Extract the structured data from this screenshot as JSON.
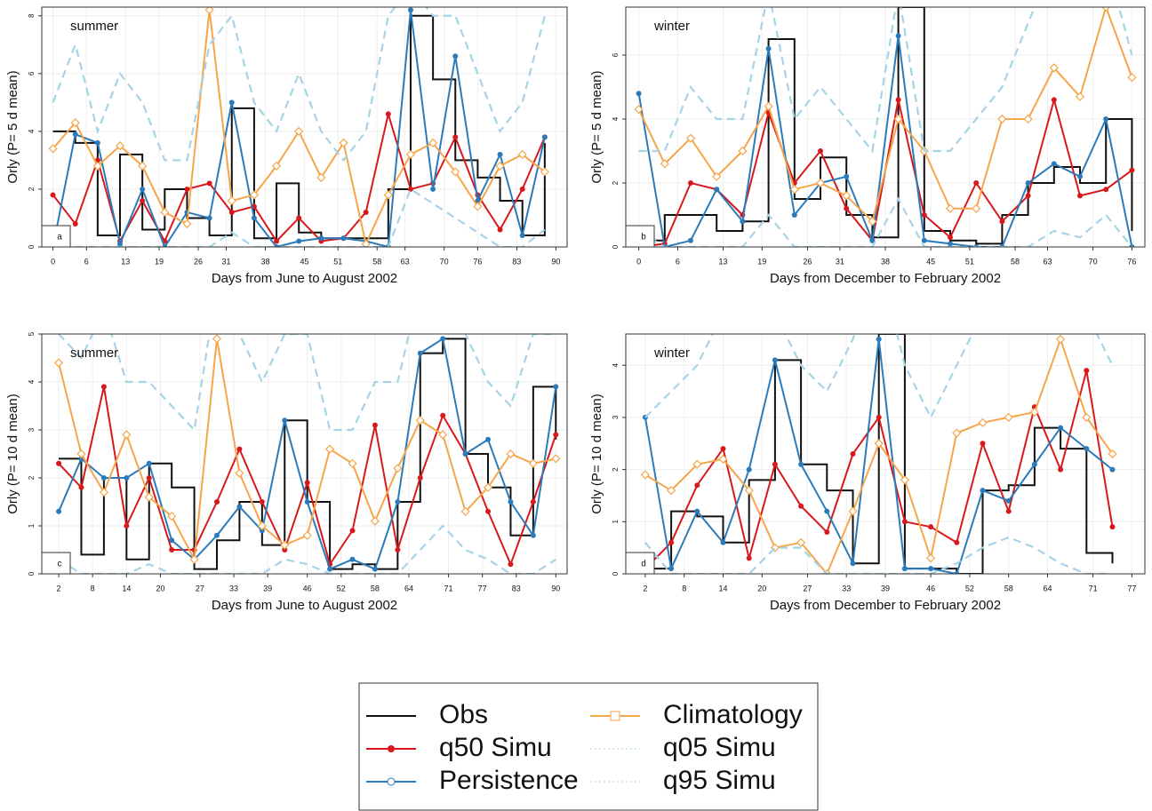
{
  "legend": [
    {
      "name": "Obs",
      "color": "#111111",
      "step": true,
      "marker": null,
      "dash": false
    },
    {
      "name": "q50 Simu",
      "color": "#d7191c",
      "step": false,
      "marker": "dot",
      "dash": false
    },
    {
      "name": "Persistence",
      "color": "#2b7bba",
      "step": false,
      "marker": "circle",
      "dash": false
    },
    {
      "name": "Climatology",
      "color": "#f5a64a",
      "step": false,
      "marker": "square",
      "dash": false
    },
    {
      "name": "q05 Simu",
      "color": "#a6d4e6",
      "step": false,
      "marker": null,
      "dash": true
    },
    {
      "name": "q95 Simu",
      "color": "#a6d4e6",
      "step": false,
      "marker": null,
      "dash": true
    }
  ],
  "chart_data": [
    {
      "type": "line",
      "annotation": "summer",
      "panel": "a",
      "xlabel": "Days from June to August 2002",
      "ylabel": "Orly (P= 5 d mean)",
      "xlim": [
        -2,
        92
      ],
      "ylim": [
        0,
        8.3
      ],
      "xticks": [
        0,
        6,
        13,
        19,
        26,
        31,
        38,
        45,
        51,
        58,
        63,
        70,
        76,
        83,
        90
      ],
      "yticks": [
        0,
        2,
        4,
        6,
        8
      ],
      "x": [
        0,
        4,
        8,
        12,
        16,
        20,
        24,
        28,
        32,
        36,
        40,
        44,
        48,
        52,
        56,
        60,
        64,
        68,
        72,
        76,
        80,
        84,
        88
      ],
      "series": [
        {
          "values": [
            4,
            3.6,
            0.4,
            3.2,
            0.6,
            2,
            1,
            0.4,
            4.8,
            0.3,
            2.2,
            0.5,
            0.3,
            0.3,
            0.3,
            2,
            8,
            5.8,
            3,
            2.4,
            1.6,
            0.4,
            3.6
          ]
        },
        {
          "values": [
            1.8,
            0.8,
            3,
            0.2,
            1.6,
            0.2,
            2,
            2.2,
            1.2,
            1.4,
            0.2,
            1,
            0.2,
            0.3,
            1.2,
            4.6,
            2,
            2.2,
            3.8,
            1.8,
            0.6,
            2,
            3.8
          ]
        },
        {
          "values": [
            0,
            3.9,
            3.6,
            0.1,
            2,
            0,
            1.2,
            1,
            5,
            1,
            0,
            0.2,
            0.3,
            0.3,
            0.2,
            0,
            8.2,
            2,
            6.6,
            1.6,
            3.2,
            0.4,
            3.8
          ]
        },
        {
          "values": [
            3.4,
            4.3,
            2.8,
            3.5,
            2.8,
            1.2,
            0.8,
            8.2,
            1.6,
            1.8,
            2.8,
            4,
            2.4,
            3.6,
            0.1,
            1.8,
            3.2,
            3.6,
            2.6,
            1.4,
            2.8,
            3.2,
            2.6
          ]
        },
        {
          "values": [
            0.5,
            0,
            0,
            0,
            0,
            0,
            0,
            0,
            0.5,
            0,
            0,
            0,
            0,
            0,
            0,
            0,
            2,
            1.5,
            1,
            0.5,
            0,
            0,
            0.6
          ]
        },
        {
          "values": [
            5,
            7,
            4,
            6,
            5,
            3,
            3,
            7,
            8,
            5,
            4,
            6,
            4,
            3,
            4,
            8,
            9,
            8,
            8,
            6,
            4,
            5,
            8
          ]
        }
      ]
    },
    {
      "type": "line",
      "annotation": "winter",
      "panel": "b",
      "xlabel": "Days from December to February 2002",
      "ylabel": "Orly (P= 5 d mean)",
      "xlim": [
        -2,
        78
      ],
      "ylim": [
        0,
        7.5
      ],
      "xticks": [
        0,
        6,
        13,
        19,
        26,
        31,
        38,
        45,
        51,
        58,
        63,
        70,
        76
      ],
      "yticks": [
        0,
        2,
        4,
        6
      ],
      "x": [
        0,
        4,
        8,
        12,
        16,
        20,
        24,
        28,
        32,
        36,
        40,
        44,
        48,
        52,
        56,
        60,
        64,
        68,
        72,
        76
      ],
      "series": [
        {
          "values": [
            0.2,
            1,
            1,
            0.5,
            0.8,
            6.5,
            1.5,
            2.8,
            1,
            0.3,
            7.5,
            0.5,
            0.2,
            0.1,
            1,
            2,
            2.5,
            2,
            4,
            0.5
          ]
        },
        {
          "values": [
            0,
            0.1,
            2,
            1.8,
            1,
            4.2,
            2,
            3,
            1.2,
            0.2,
            4.6,
            1,
            0.3,
            2,
            0.8,
            1.6,
            4.6,
            1.6,
            1.8,
            2.4
          ]
        },
        {
          "values": [
            4.8,
            0,
            0.2,
            1.8,
            0.8,
            6.2,
            1,
            2,
            2.2,
            0.2,
            6.6,
            0.2,
            0.1,
            0,
            0,
            2,
            2.6,
            2.2,
            4,
            0
          ]
        },
        {
          "values": [
            4.3,
            2.6,
            3.4,
            2.2,
            3,
            4.4,
            1.8,
            2,
            1.6,
            0.8,
            4,
            3,
            1.2,
            1.2,
            4,
            4,
            5.6,
            4.7,
            7.5,
            5.3
          ]
        },
        {
          "values": [
            0.5,
            0,
            0,
            0,
            0,
            1,
            0,
            0,
            0,
            0,
            1.5,
            0,
            0,
            0,
            0,
            0,
            0.5,
            0.3,
            1,
            0
          ]
        },
        {
          "values": [
            3,
            3,
            5,
            4,
            4,
            8,
            4,
            5,
            4,
            3,
            8,
            3,
            3,
            4,
            5,
            7,
            9,
            8,
            9,
            6
          ]
        }
      ]
    },
    {
      "type": "line",
      "annotation": "summer",
      "panel": "c",
      "xlabel": "Days from June to August 2002",
      "ylabel": "Orly (P= 10 d mean)",
      "xlim": [
        -1,
        92
      ],
      "ylim": [
        0,
        5
      ],
      "xticks": [
        2,
        8,
        14,
        20,
        27,
        33,
        39,
        46,
        52,
        58,
        64,
        71,
        77,
        83,
        90
      ],
      "yticks": [
        0,
        1,
        2,
        3,
        4,
        5
      ],
      "x": [
        2,
        6,
        10,
        14,
        18,
        22,
        26,
        30,
        34,
        38,
        42,
        46,
        50,
        54,
        58,
        62,
        66,
        70,
        74,
        78,
        82,
        86,
        90
      ],
      "series": [
        {
          "values": [
            2.4,
            0.4,
            2,
            0.3,
            2.3,
            1.8,
            0.1,
            0.7,
            1.5,
            0.6,
            3.2,
            1.5,
            0.1,
            0.2,
            0.1,
            1.5,
            4.6,
            4.9,
            2.5,
            1.8,
            0.8,
            3.9,
            2.8
          ]
        },
        {
          "values": [
            2.3,
            1.8,
            3.9,
            1,
            2,
            0.5,
            0.5,
            1.5,
            2.6,
            1.5,
            0.5,
            1.9,
            0.2,
            0.9,
            3.1,
            0.5,
            2,
            3.3,
            2.5,
            1.3,
            0.2,
            1.5,
            2.9
          ]
        },
        {
          "values": [
            1.3,
            2.4,
            2,
            2,
            2.3,
            0.7,
            0.3,
            0.8,
            1.4,
            0.9,
            3.2,
            1.5,
            0.1,
            0.3,
            0.1,
            1.5,
            4.6,
            4.9,
            2.5,
            2.8,
            1.5,
            0.8,
            3.9
          ]
        },
        {
          "values": [
            4.4,
            2.5,
            1.7,
            2.9,
            1.6,
            1.2,
            0.3,
            4.9,
            2.1,
            1,
            0.6,
            0.8,
            2.6,
            2.3,
            1.1,
            2.2,
            3.2,
            2.9,
            1.3,
            1.8,
            2.5,
            2.3,
            2.4
          ]
        },
        {
          "values": [
            0.3,
            0,
            0,
            0,
            0.2,
            0,
            0,
            0,
            0,
            0,
            0.3,
            0.2,
            0,
            0,
            0,
            0,
            0.5,
            1,
            0.5,
            0.3,
            0,
            0,
            0.3
          ]
        },
        {
          "values": [
            5,
            4.5,
            5.5,
            4,
            4,
            3.5,
            3,
            6,
            5,
            4,
            5,
            5,
            3,
            3,
            4,
            4,
            6,
            6,
            5,
            4,
            3.5,
            5,
            5
          ]
        }
      ]
    },
    {
      "type": "line",
      "annotation": "winter",
      "panel": "d",
      "xlabel": "Days from December to February 2002",
      "ylabel": "Orly (P= 10 d mean)",
      "xlim": [
        -1,
        79
      ],
      "ylim": [
        0,
        4.6
      ],
      "xticks": [
        2,
        8,
        14,
        20,
        27,
        33,
        39,
        46,
        52,
        58,
        64,
        71,
        77
      ],
      "yticks": [
        0,
        1,
        2,
        3,
        4
      ],
      "x": [
        2,
        6,
        10,
        14,
        18,
        22,
        26,
        30,
        34,
        38,
        42,
        46,
        50,
        54,
        58,
        62,
        66,
        70,
        74
      ],
      "series": [
        {
          "values": [
            0.1,
            1.2,
            1.1,
            0.6,
            1.8,
            4.1,
            2.1,
            1.6,
            0.2,
            4.6,
            0.1,
            0.1,
            0,
            1.6,
            1.7,
            2.8,
            2.4,
            0.4,
            0.2
          ]
        },
        {
          "values": [
            0.1,
            0.6,
            1.7,
            2.4,
            0.3,
            2.1,
            1.3,
            0.8,
            2.3,
            3,
            1,
            0.9,
            0.6,
            2.5,
            1.2,
            3.2,
            2,
            3.9,
            0.9
          ]
        },
        {
          "values": [
            3,
            0.1,
            1.2,
            0.6,
            2,
            4.1,
            2.1,
            1.2,
            0.2,
            4.5,
            0.1,
            0.1,
            0,
            1.6,
            1.4,
            2.1,
            2.8,
            2.4,
            2
          ]
        },
        {
          "values": [
            1.9,
            1.6,
            2.1,
            2.2,
            1.6,
            0.5,
            0.6,
            0,
            1.2,
            2.5,
            1.8,
            0.3,
            2.7,
            2.9,
            3,
            3.1,
            4.5,
            3,
            2.3
          ]
        },
        {
          "values": [
            0.6,
            0,
            0,
            0,
            0,
            0.5,
            0.5,
            0,
            0,
            0,
            0,
            0,
            0.2,
            0.5,
            0.7,
            0.5,
            0.2,
            0,
            0
          ]
        },
        {
          "values": [
            3,
            3.5,
            4,
            5,
            5,
            5,
            4,
            3.5,
            4.5,
            6,
            4,
            3,
            4,
            5,
            5,
            5,
            5,
            5,
            4
          ]
        }
      ]
    }
  ]
}
